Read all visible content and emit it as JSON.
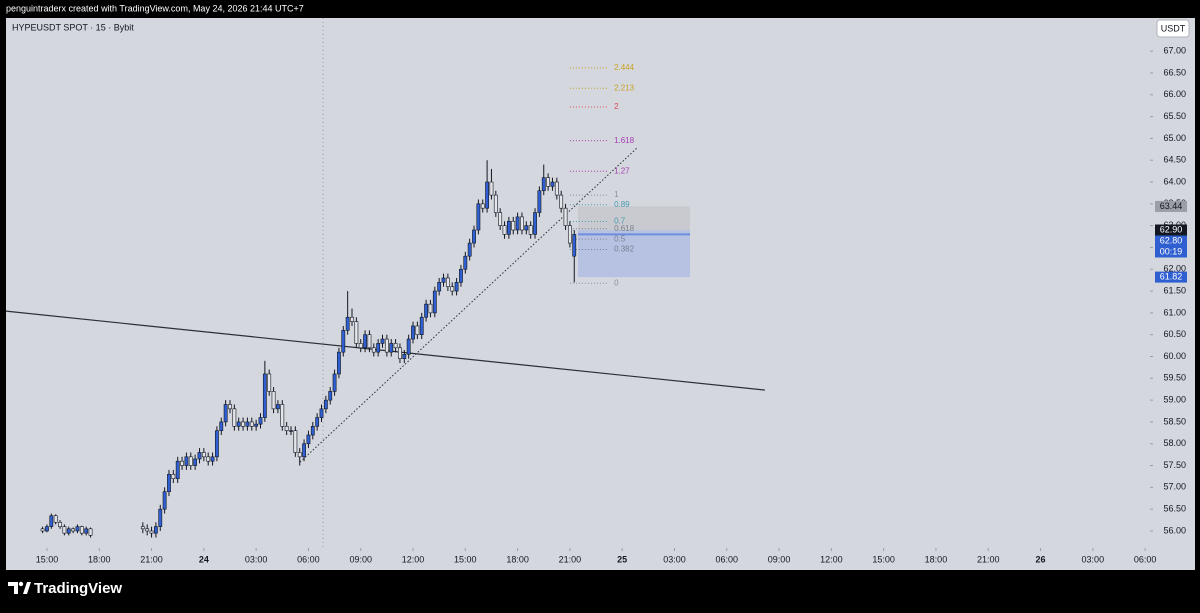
{
  "header": {
    "caption": "penguintraderx created with TradingView.com, May 24, 2026 21:44 UTC+7"
  },
  "chart_data": {
    "type": "candlestick",
    "title": "HYPEUSDT SPOT · 15 · Bybit",
    "currency": "USDT",
    "up_color": "#2f5fd0",
    "down_color": "#e4e6ea",
    "x": [
      14.75,
      15,
      15.25,
      15.5,
      15.75,
      16,
      16.25,
      16.5,
      16.75,
      17,
      17.25,
      17.5,
      20.5,
      20.75,
      21,
      21.25,
      21.5,
      21.75,
      22,
      22.25,
      22.5,
      22.75,
      23,
      23.25,
      23.5,
      23.75,
      24,
      24.25,
      24.5,
      24.75,
      25,
      25.25,
      25.5,
      25.75,
      26,
      26.25,
      26.5,
      26.75,
      27,
      27.25,
      27.5,
      27.75,
      28,
      28.25,
      28.5,
      28.75,
      29,
      29.25,
      29.5,
      29.75,
      30,
      30.25,
      30.5,
      30.75,
      31,
      31.25,
      31.5,
      31.75,
      32,
      32.25,
      32.5,
      32.75,
      33,
      33.25,
      33.5,
      33.75,
      34,
      34.25,
      34.5,
      34.75,
      35,
      35.25,
      35.5,
      35.75,
      36,
      36.25,
      36.5,
      36.75,
      37,
      37.25,
      37.5,
      37.75,
      38,
      38.25,
      38.5,
      38.75,
      39,
      39.25,
      39.5,
      39.75,
      40,
      40.25,
      40.5,
      40.75,
      41,
      41.25,
      41.5,
      41.75,
      42,
      42.25,
      42.5,
      42.75,
      43,
      43.25,
      43.5,
      43.75,
      44,
      44.25,
      44.5,
      44.75,
      45,
      45.25
    ],
    "open": [
      56.05,
      56.0,
      56.1,
      56.35,
      56.2,
      56.1,
      55.95,
      56.05,
      56.0,
      56.1,
      55.95,
      56.05,
      56.1,
      56.05,
      56.0,
      55.95,
      56.1,
      56.5,
      56.9,
      57.3,
      57.2,
      57.6,
      57.5,
      57.7,
      57.5,
      57.65,
      57.8,
      57.7,
      57.6,
      57.7,
      58.3,
      58.5,
      58.9,
      58.8,
      58.4,
      58.5,
      58.4,
      58.5,
      58.4,
      58.45,
      58.6,
      59.6,
      59.2,
      58.8,
      58.9,
      58.4,
      58.3,
      58.3,
      57.8,
      57.7,
      58.0,
      58.2,
      58.4,
      58.6,
      58.8,
      59.0,
      59.2,
      59.6,
      60.1,
      60.6,
      60.9,
      60.8,
      60.3,
      60.2,
      60.5,
      60.2,
      60.1,
      60.3,
      60.4,
      60.1,
      60.3,
      60.2,
      59.95,
      60.05,
      60.4,
      60.7,
      60.5,
      60.9,
      61.2,
      61.0,
      61.5,
      61.7,
      61.8,
      61.6,
      61.5,
      61.7,
      62.0,
      62.3,
      62.6,
      62.9,
      63.5,
      63.4,
      64.0,
      63.7,
      63.3,
      63.0,
      62.8,
      63.1,
      62.9,
      63.2,
      62.9,
      63.0,
      62.8,
      63.3,
      63.8,
      64.1,
      63.9,
      64.0,
      63.7,
      63.4,
      63.0,
      62.3
    ],
    "high": [
      56.1,
      56.15,
      56.4,
      56.38,
      56.25,
      56.15,
      56.1,
      56.08,
      56.15,
      56.12,
      56.1,
      56.08,
      56.2,
      56.15,
      56.1,
      56.2,
      56.6,
      57.0,
      57.4,
      57.4,
      57.7,
      57.7,
      57.8,
      57.8,
      57.75,
      57.9,
      57.9,
      57.8,
      57.8,
      58.4,
      58.6,
      59.0,
      59.0,
      58.9,
      58.6,
      58.6,
      58.6,
      58.6,
      58.55,
      58.7,
      59.9,
      59.7,
      59.3,
      59.0,
      59.0,
      58.5,
      58.4,
      58.4,
      57.9,
      58.1,
      58.3,
      58.5,
      58.7,
      58.9,
      59.1,
      59.3,
      59.7,
      60.2,
      60.7,
      61.5,
      61.1,
      60.9,
      60.4,
      60.6,
      60.6,
      60.3,
      60.4,
      60.5,
      60.5,
      60.4,
      60.4,
      60.3,
      60.15,
      60.5,
      60.8,
      60.8,
      61.0,
      61.3,
      61.3,
      61.6,
      61.8,
      61.9,
      61.9,
      61.7,
      61.8,
      62.1,
      62.4,
      62.7,
      63.0,
      63.6,
      63.6,
      64.5,
      64.3,
      63.8,
      63.4,
      63.1,
      63.2,
      63.2,
      63.3,
      63.3,
      63.1,
      63.1,
      63.4,
      63.9,
      64.4,
      64.2,
      64.1,
      64.1,
      63.8,
      63.5,
      63.1,
      62.9
    ],
    "low": [
      55.95,
      55.97,
      56.05,
      56.15,
      56.05,
      55.9,
      55.9,
      55.95,
      55.95,
      55.9,
      55.9,
      55.85,
      55.95,
      55.9,
      55.85,
      55.85,
      56.0,
      56.4,
      56.8,
      57.1,
      57.1,
      57.4,
      57.4,
      57.4,
      57.4,
      57.55,
      57.6,
      57.5,
      57.5,
      57.6,
      58.2,
      58.4,
      58.7,
      58.3,
      58.3,
      58.3,
      58.3,
      58.3,
      58.3,
      58.35,
      58.5,
      59.1,
      58.7,
      58.7,
      58.3,
      58.2,
      58.2,
      57.7,
      57.5,
      57.6,
      57.9,
      58.1,
      58.3,
      58.5,
      58.7,
      58.9,
      59.1,
      59.5,
      60.0,
      60.5,
      60.7,
      60.2,
      60.1,
      60.1,
      60.1,
      60.0,
      60.0,
      60.2,
      60.0,
      60.0,
      60.1,
      59.85,
      59.85,
      59.95,
      60.3,
      60.4,
      60.4,
      60.8,
      60.9,
      60.9,
      61.4,
      61.6,
      61.5,
      61.4,
      61.4,
      61.6,
      61.9,
      62.2,
      62.5,
      62.8,
      63.3,
      63.3,
      63.6,
      63.2,
      62.9,
      62.7,
      62.7,
      62.8,
      62.8,
      62.8,
      62.8,
      62.7,
      62.7,
      63.2,
      63.7,
      63.8,
      63.8,
      63.6,
      63.3,
      62.9,
      62.5,
      61.7
    ],
    "close": [
      56.0,
      56.1,
      56.35,
      56.2,
      56.1,
      55.95,
      56.05,
      56.0,
      56.1,
      55.95,
      56.05,
      55.9,
      56.05,
      56.0,
      55.95,
      56.1,
      56.5,
      56.9,
      57.3,
      57.2,
      57.6,
      57.5,
      57.7,
      57.5,
      57.65,
      57.8,
      57.7,
      57.6,
      57.7,
      58.3,
      58.5,
      58.9,
      58.8,
      58.4,
      58.5,
      58.4,
      58.5,
      58.4,
      58.45,
      58.6,
      59.6,
      59.2,
      58.8,
      58.9,
      58.4,
      58.3,
      58.3,
      57.8,
      57.7,
      58.0,
      58.2,
      58.4,
      58.6,
      58.8,
      59.0,
      59.2,
      59.6,
      60.1,
      60.6,
      60.9,
      60.8,
      60.3,
      60.2,
      60.5,
      60.2,
      60.1,
      60.3,
      60.4,
      60.1,
      60.3,
      60.2,
      59.95,
      60.05,
      60.4,
      60.7,
      60.5,
      60.9,
      61.2,
      61.0,
      61.5,
      61.7,
      61.8,
      61.6,
      61.5,
      61.7,
      62.0,
      62.3,
      62.6,
      62.9,
      63.5,
      63.4,
      64.0,
      63.7,
      63.3,
      63.0,
      62.8,
      63.1,
      62.9,
      63.2,
      62.9,
      63.0,
      62.8,
      63.3,
      63.8,
      64.1,
      63.9,
      64.0,
      63.7,
      63.4,
      63.0,
      62.6,
      62.8
    ],
    "xlim": [
      12.65,
      78.28
    ],
    "xticks": [
      {
        "value": 15,
        "label": "15:00"
      },
      {
        "value": 18,
        "label": "18:00"
      },
      {
        "value": 21,
        "label": "21:00"
      },
      {
        "value": 24,
        "label": "24"
      },
      {
        "value": 27,
        "label": "03:00"
      },
      {
        "value": 30,
        "label": "06:00"
      },
      {
        "value": 33,
        "label": "09:00"
      },
      {
        "value": 36,
        "label": "12:00"
      },
      {
        "value": 39,
        "label": "15:00"
      },
      {
        "value": 42,
        "label": "18:00"
      },
      {
        "value": 45,
        "label": "21:00"
      },
      {
        "value": 48,
        "label": "25"
      },
      {
        "value": 51,
        "label": "03:00"
      },
      {
        "value": 54,
        "label": "06:00"
      },
      {
        "value": 57,
        "label": "09:00"
      },
      {
        "value": 60,
        "label": "12:00"
      },
      {
        "value": 63,
        "label": "15:00"
      },
      {
        "value": 66,
        "label": "18:00"
      },
      {
        "value": 69,
        "label": "21:00"
      },
      {
        "value": 72,
        "label": "26"
      },
      {
        "value": 75,
        "label": "03:00"
      },
      {
        "value": 78,
        "label": "06:00"
      }
    ],
    "ylim": [
      55.61,
      67.76
    ],
    "yticks": [
      {
        "value": 56,
        "label": "56.00"
      },
      {
        "value": 56.5,
        "label": "56.50"
      },
      {
        "value": 57,
        "label": "57.00"
      },
      {
        "value": 57.5,
        "label": "57.50"
      },
      {
        "value": 58,
        "label": "58.00"
      },
      {
        "value": 58.5,
        "label": "58.50"
      },
      {
        "value": 59,
        "label": "59.00"
      },
      {
        "value": 59.5,
        "label": "59.50"
      },
      {
        "value": 60,
        "label": "60.00"
      },
      {
        "value": 60.5,
        "label": "60.50"
      },
      {
        "value": 61,
        "label": "61.00"
      },
      {
        "value": 61.5,
        "label": "61.50"
      },
      {
        "value": 62,
        "label": "62.00"
      },
      {
        "value": 62.5,
        "label": "62.50"
      },
      {
        "value": 63,
        "label": "63.00"
      },
      {
        "value": 63.5,
        "label": "63.50"
      },
      {
        "value": 64,
        "label": "64.00"
      },
      {
        "value": 64.5,
        "label": "64.50"
      },
      {
        "value": 65,
        "label": "65.00"
      },
      {
        "value": 65.5,
        "label": "65.50"
      },
      {
        "value": 66,
        "label": "66.00"
      },
      {
        "value": 66.5,
        "label": "66.50"
      },
      {
        "value": 67,
        "label": "67.00"
      }
    ],
    "drawings": [
      {
        "x": [
          29.52,
          48.85
        ],
        "y": [
          57.58,
          64.78
        ],
        "style": "dotted",
        "color": "#2a2e39"
      },
      {
        "x": [
          12.65,
          56.19
        ],
        "y": [
          61.04,
          59.23
        ],
        "style": "solid",
        "color": "#2a2e39"
      }
    ],
    "fib": {
      "x": [
        45.0,
        47.19
      ],
      "low": 61.68,
      "high": 63.7,
      "levels": [
        2.444,
        2.213,
        2,
        1.618,
        1.27,
        1,
        0.89,
        0.7,
        0.618,
        0.5,
        0.382,
        0
      ],
      "colors": [
        "#c9a227",
        "#c9a227",
        "#e04a5a",
        "#a53cb5",
        "#a53cb5",
        "#8a8f9a",
        "#4a9ab0",
        "#4a9ab0",
        "#7a8090",
        "#7a8090",
        "#7a8090",
        "#8a8f9a"
      ]
    },
    "position": {
      "x": [
        45.46,
        51.89
      ],
      "target": 63.44,
      "entry": {
        "value": 62.9,
        "label": "62.90"
      },
      "stop": 61.82
    },
    "last_price": {
      "value": 62.8,
      "label": "62.80"
    },
    "countdown": "00:19"
  },
  "footer": {
    "brand": "TradingView"
  }
}
